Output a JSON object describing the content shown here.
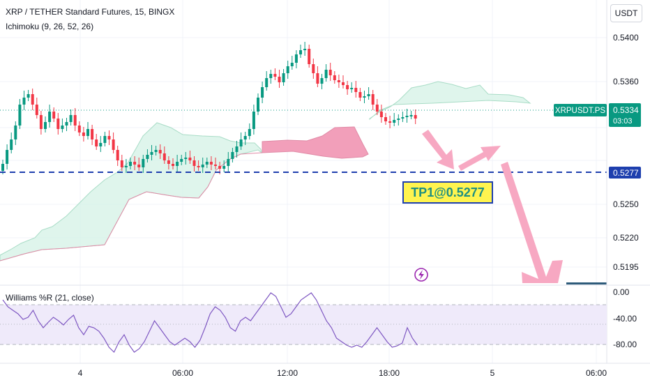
{
  "header": {
    "title": "XRP / TETHER Standard Futures, 15, BINGX",
    "indicator": "Ichimoku (9, 26, 52, 26)",
    "currency": "USDT"
  },
  "price_axis": {
    "ticks": [
      "0.5400",
      "0.5360",
      "0.5250",
      "0.5220",
      "0.5195"
    ]
  },
  "price_labels": {
    "symbol": "XRPUSDT.PS",
    "last_price": "0.5334",
    "countdown": "03:03",
    "target_line_price": "0.5277"
  },
  "annotation": {
    "text": "TP1@0.5277"
  },
  "oscillator": {
    "title": "Williams %R (21, close)",
    "ticks": [
      "0.00",
      "-40.00",
      "-80.00"
    ]
  },
  "time_axis": {
    "ticks": [
      "4",
      "06:00",
      "12:00",
      "18:00",
      "5",
      "06:00"
    ]
  },
  "colors": {
    "up": "#089981",
    "down": "#f23645",
    "target_line": "#1e3fae",
    "annotation_bg": "#fff44f",
    "annotation_border": "#1e3fae",
    "arrow": "#f7a8c2",
    "cloud_up": "#d4f1e6",
    "cloud_down": "#f29fba",
    "wr_line": "#7e57c2",
    "wr_band": "#efeafa",
    "last_price_bg": "#089981"
  },
  "icons": {
    "replay": "lightning-icon"
  }
}
